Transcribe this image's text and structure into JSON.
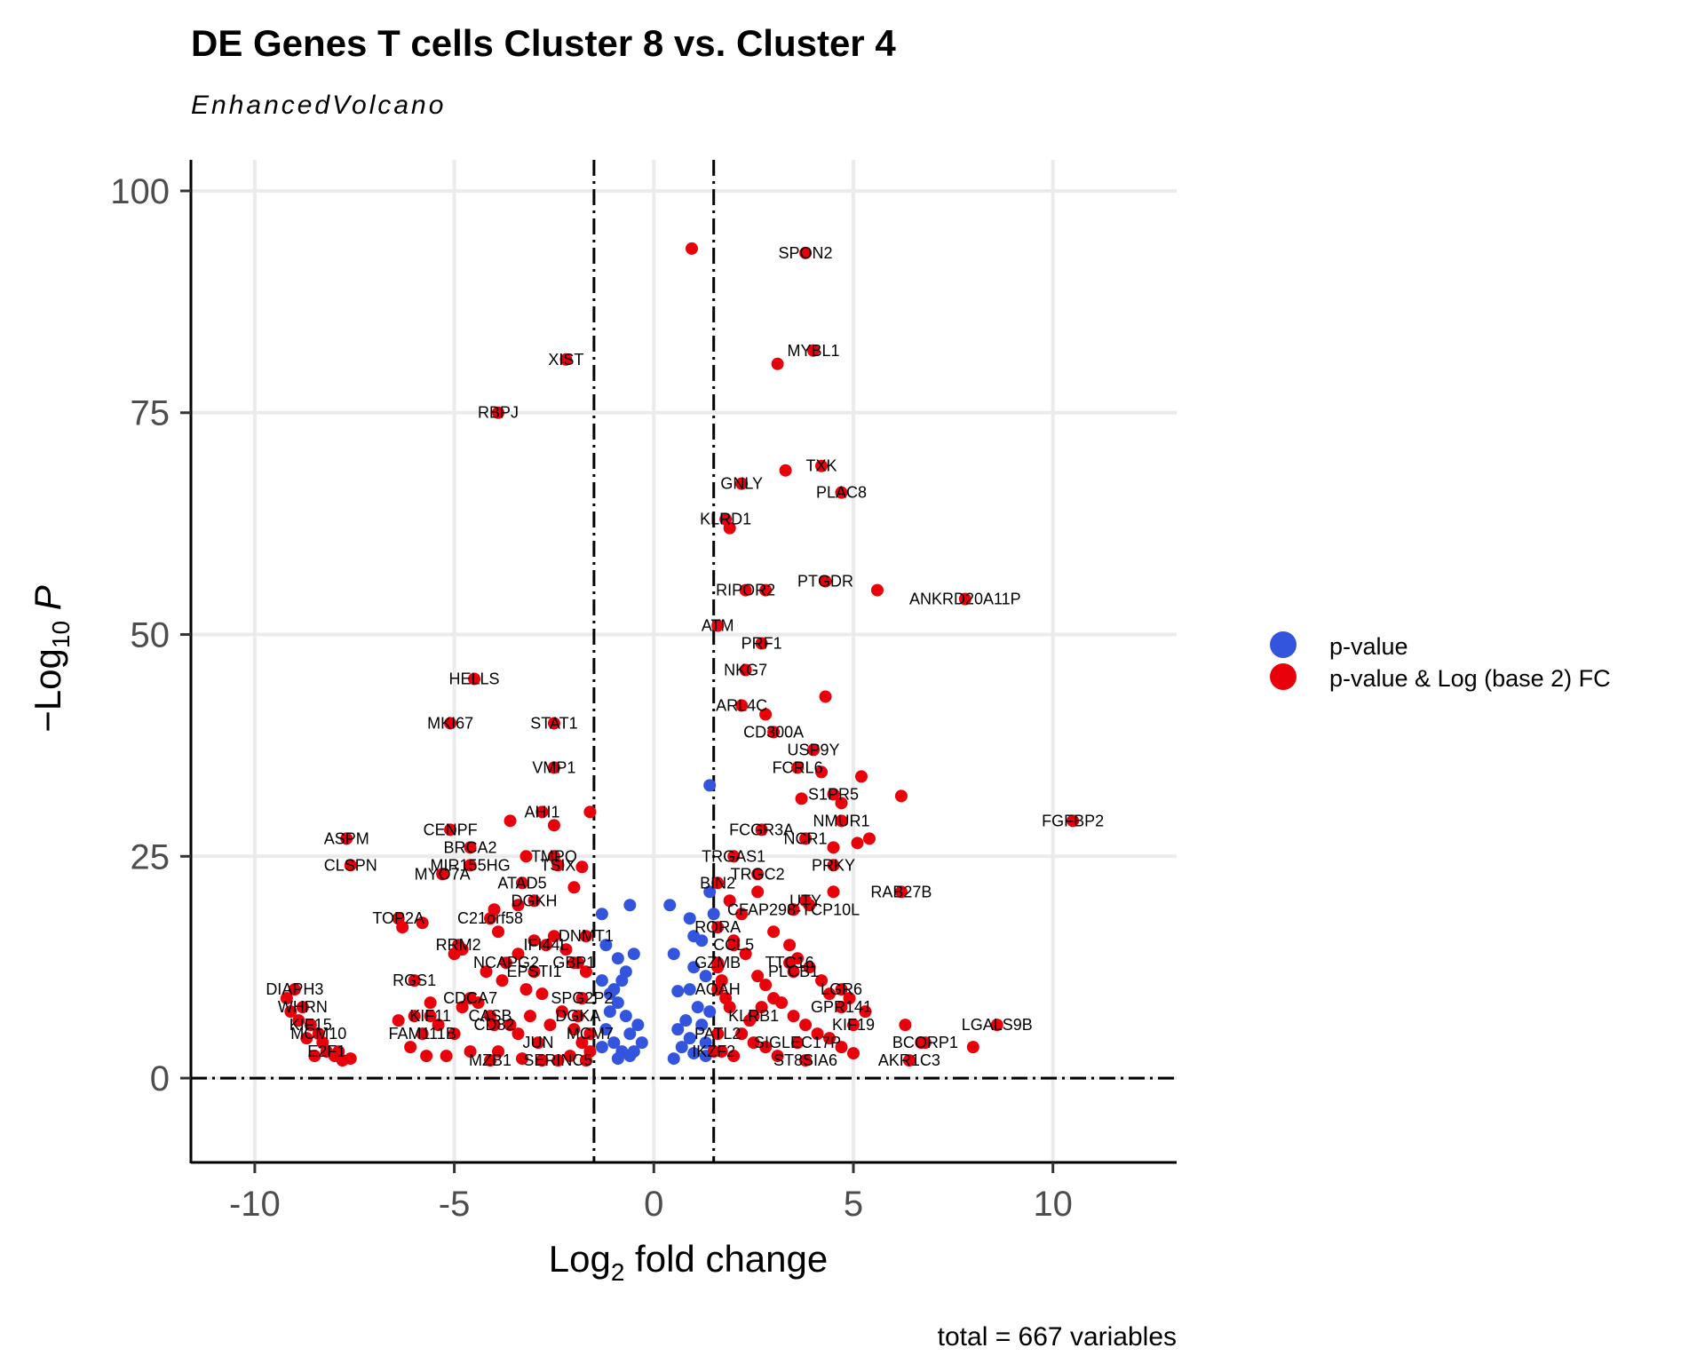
{
  "chart_data": {
    "type": "scatter",
    "title": "DE Genes T cells Cluster 8 vs. Cluster 4",
    "subtitle": "EnhancedVolcano",
    "xlabel": {
      "pre": "Log",
      "sub": "2",
      "post": " fold change"
    },
    "ylabel": {
      "pre": "−Log",
      "sub": "10",
      "post": " P"
    },
    "caption": "total = 667 variables",
    "xlim": [
      -11.6,
      13.1
    ],
    "ylim": [
      -9.5,
      103.5
    ],
    "x_ticks": [
      -10,
      -5,
      0,
      5,
      10
    ],
    "x_tick_labels": [
      "-10",
      "-5",
      "0",
      "5",
      "10"
    ],
    "y_ticks": [
      0,
      25,
      50,
      75,
      100
    ],
    "y_tick_labels": [
      "0",
      "25",
      "50",
      "75",
      "100"
    ],
    "grid": true,
    "fc_cutoff": 1.5,
    "p_cutoff_line_y": 0,
    "legend": {
      "position": "right",
      "entries": [
        {
          "label": "p-value",
          "color": "#3355dd"
        },
        {
          "label": "p-value & Log (base 2) FC",
          "color": "#e8000b"
        }
      ]
    },
    "colors": {
      "blue": "#3355dd",
      "red": "#e8000b",
      "grid": "#ebebeb"
    },
    "labeled_points": [
      {
        "gene": "SPON2",
        "x": 3.8,
        "y": 93
      },
      {
        "gene": "MYBL1",
        "x": 4.0,
        "y": 82
      },
      {
        "gene": "XIST",
        "x": -2.2,
        "y": 81
      },
      {
        "gene": "RBPJ",
        "x": -3.9,
        "y": 75
      },
      {
        "gene": "TXK",
        "x": 4.2,
        "y": 69
      },
      {
        "gene": "GNLY",
        "x": 2.2,
        "y": 67
      },
      {
        "gene": "PLAC8",
        "x": 4.7,
        "y": 66
      },
      {
        "gene": "KLRD1",
        "x": 1.8,
        "y": 63
      },
      {
        "gene": "PTGDR",
        "x": 4.3,
        "y": 56
      },
      {
        "gene": "ANKRD20A11P",
        "x": 7.8,
        "y": 54
      },
      {
        "gene": "RIPOR2",
        "x": 2.3,
        "y": 55
      },
      {
        "gene": "ATM",
        "x": 1.6,
        "y": 51
      },
      {
        "gene": "PRF1",
        "x": 2.7,
        "y": 49
      },
      {
        "gene": "HELLS",
        "x": -4.5,
        "y": 45
      },
      {
        "gene": "NKG7",
        "x": 2.3,
        "y": 46
      },
      {
        "gene": "ARL4C",
        "x": 2.2,
        "y": 42
      },
      {
        "gene": "MKI67",
        "x": -5.1,
        "y": 40
      },
      {
        "gene": "STAT1",
        "x": -2.5,
        "y": 40
      },
      {
        "gene": "CD300A",
        "x": 3.0,
        "y": 39
      },
      {
        "gene": "USP9Y",
        "x": 4.0,
        "y": 37
      },
      {
        "gene": "FCRL6",
        "x": 3.6,
        "y": 35
      },
      {
        "gene": "VMP1",
        "x": -2.5,
        "y": 35
      },
      {
        "gene": "S1PR5",
        "x": 4.5,
        "y": 32
      },
      {
        "gene": "AHI1",
        "x": -2.8,
        "y": 30
      },
      {
        "gene": "NMUR1",
        "x": 4.7,
        "y": 29
      },
      {
        "gene": "FGFBP2",
        "x": 10.5,
        "y": 29
      },
      {
        "gene": "ASPM",
        "x": -7.7,
        "y": 27
      },
      {
        "gene": "CENPF",
        "x": -5.1,
        "y": 28
      },
      {
        "gene": "FCGR3A",
        "x": 2.7,
        "y": 28
      },
      {
        "gene": "BRCA2",
        "x": -4.6,
        "y": 26
      },
      {
        "gene": "NCR1",
        "x": 3.8,
        "y": 27
      },
      {
        "gene": "TMPO",
        "x": -2.5,
        "y": 25
      },
      {
        "gene": "TRGAS1",
        "x": 2.0,
        "y": 25
      },
      {
        "gene": "MIR155HG",
        "x": -4.6,
        "y": 24
      },
      {
        "gene": "TSIX",
        "x": -2.4,
        "y": 24
      },
      {
        "gene": "CLSPN",
        "x": -7.6,
        "y": 24
      },
      {
        "gene": "PRKY",
        "x": 4.5,
        "y": 24
      },
      {
        "gene": "TRGC2",
        "x": 2.6,
        "y": 23
      },
      {
        "gene": "MYO7A",
        "x": -5.3,
        "y": 23
      },
      {
        "gene": "ATAD5",
        "x": -3.3,
        "y": 22
      },
      {
        "gene": "BIN2",
        "x": 1.6,
        "y": 22
      },
      {
        "gene": "RAB27B",
        "x": 6.2,
        "y": 21
      },
      {
        "gene": "UTY",
        "x": 3.8,
        "y": 20
      },
      {
        "gene": "DGKH",
        "x": -3.0,
        "y": 20
      },
      {
        "gene": "CFAP298-TCP10L",
        "x": 3.5,
        "y": 19
      },
      {
        "gene": "TOP2A",
        "x": -6.4,
        "y": 18
      },
      {
        "gene": "C21orf58",
        "x": -4.1,
        "y": 18
      },
      {
        "gene": "RORA",
        "x": 1.6,
        "y": 17
      },
      {
        "gene": "DNMT1",
        "x": -1.7,
        "y": 16
      },
      {
        "gene": "CCL5",
        "x": 2.0,
        "y": 15
      },
      {
        "gene": "RRM2",
        "x": -4.9,
        "y": 15
      },
      {
        "gene": "IFI44L",
        "x": -2.7,
        "y": 15
      },
      {
        "gene": "TTC16",
        "x": 3.4,
        "y": 13
      },
      {
        "gene": "GZMB",
        "x": 1.6,
        "y": 13
      },
      {
        "gene": "GBP1",
        "x": -2.0,
        "y": 13
      },
      {
        "gene": "NCAPG2",
        "x": -3.7,
        "y": 13
      },
      {
        "gene": "PLCB1",
        "x": 3.5,
        "y": 12
      },
      {
        "gene": "EPSTI1",
        "x": -3.0,
        "y": 12
      },
      {
        "gene": "RGS1",
        "x": -6.0,
        "y": 11
      },
      {
        "gene": "LGR6",
        "x": 4.7,
        "y": 10
      },
      {
        "gene": "AOAH",
        "x": 1.6,
        "y": 10
      },
      {
        "gene": "DIAPH3",
        "x": -9.0,
        "y": 10
      },
      {
        "gene": "CDCA7",
        "x": -4.6,
        "y": 9
      },
      {
        "gene": "SPG2P2",
        "x": -1.8,
        "y": 9
      },
      {
        "gene": "GPR141",
        "x": 4.7,
        "y": 8
      },
      {
        "gene": "WHRN",
        "x": -8.8,
        "y": 8
      },
      {
        "gene": "DGKA",
        "x": -1.9,
        "y": 7
      },
      {
        "gene": "KIF11",
        "x": -5.6,
        "y": 7
      },
      {
        "gene": "CASB",
        "x": -4.1,
        "y": 7
      },
      {
        "gene": "KLRB1",
        "x": 2.5,
        "y": 7
      },
      {
        "gene": "KIF15",
        "x": -8.6,
        "y": 6
      },
      {
        "gene": "KIF19",
        "x": 5.0,
        "y": 6
      },
      {
        "gene": "LGALS9B",
        "x": 8.6,
        "y": 6
      },
      {
        "gene": "CD82",
        "x": -4.0,
        "y": 6
      },
      {
        "gene": "MCM7",
        "x": -1.6,
        "y": 5
      },
      {
        "gene": "MCM10",
        "x": -8.4,
        "y": 5
      },
      {
        "gene": "FAM111B",
        "x": -5.8,
        "y": 5
      },
      {
        "gene": "PATL2",
        "x": 1.6,
        "y": 5
      },
      {
        "gene": "JUN",
        "x": -2.9,
        "y": 4
      },
      {
        "gene": "SIGLEC17P",
        "x": 3.6,
        "y": 4
      },
      {
        "gene": "BCORP1",
        "x": 6.8,
        "y": 4
      },
      {
        "gene": "E2F1",
        "x": -8.2,
        "y": 3
      },
      {
        "gene": "IKZF2",
        "x": 1.5,
        "y": 3
      },
      {
        "gene": "MZB1",
        "x": -4.1,
        "y": 2
      },
      {
        "gene": "SERINC5",
        "x": -2.4,
        "y": 2
      },
      {
        "gene": "ST8SIA6",
        "x": 3.8,
        "y": 2
      },
      {
        "gene": "AKR1C3",
        "x": 6.4,
        "y": 2
      }
    ],
    "unlabeled_points": {
      "red": [
        [
          0.95,
          93.5
        ],
        [
          3.1,
          80.5
        ],
        [
          3.3,
          68.5
        ],
        [
          1.9,
          62
        ],
        [
          5.6,
          55
        ],
        [
          2.8,
          55
        ],
        [
          4.3,
          43
        ],
        [
          2.8,
          41
        ],
        [
          5.2,
          34
        ],
        [
          4.2,
          34.5
        ],
        [
          3.7,
          31.5
        ],
        [
          4.7,
          31
        ],
        [
          6.2,
          31.8
        ],
        [
          -1.6,
          30
        ],
        [
          -3.6,
          29
        ],
        [
          -2.5,
          28.5
        ],
        [
          5.4,
          27
        ],
        [
          5.1,
          26.5
        ],
        [
          4.5,
          26
        ],
        [
          -3.2,
          25
        ],
        [
          -1.8,
          23.8
        ],
        [
          2.6,
          21
        ],
        [
          -2.0,
          21.5
        ],
        [
          -3.4,
          19.5
        ],
        [
          -4.0,
          19
        ],
        [
          -3.9,
          16.5
        ],
        [
          -3.0,
          15.5
        ],
        [
          -2.5,
          16
        ],
        [
          -2.2,
          14.5
        ],
        [
          -6.3,
          17
        ],
        [
          -5.8,
          17.5
        ],
        [
          -5.0,
          14
        ],
        [
          -4.8,
          14.5
        ],
        [
          -3.4,
          14
        ],
        [
          -1.9,
          13
        ],
        [
          -1.7,
          12
        ],
        [
          -4.2,
          12
        ],
        [
          -3.8,
          11
        ],
        [
          -3.2,
          10
        ],
        [
          -2.8,
          9.5
        ],
        [
          -5.6,
          8.5
        ],
        [
          -4.8,
          8
        ],
        [
          -4.4,
          8.5
        ],
        [
          -6.4,
          6.5
        ],
        [
          -6.0,
          7
        ],
        [
          -5.4,
          6
        ],
        [
          -5.0,
          5
        ],
        [
          -3.6,
          6
        ],
        [
          -3.4,
          5
        ],
        [
          -3.1,
          7
        ],
        [
          -2.6,
          6
        ],
        [
          -2.3,
          7.5
        ],
        [
          -2.0,
          5.5
        ],
        [
          -1.8,
          4
        ],
        [
          -1.6,
          3
        ],
        [
          -3.9,
          3
        ],
        [
          -4.6,
          3
        ],
        [
          -5.2,
          2.5
        ],
        [
          -5.7,
          2.5
        ],
        [
          -6.1,
          3.5
        ],
        [
          -2.8,
          2
        ],
        [
          -3.3,
          2.2
        ],
        [
          -2.1,
          2.5
        ],
        [
          -1.7,
          2
        ],
        [
          -7.8,
          2
        ],
        [
          -7.6,
          2.2
        ],
        [
          -7.9,
          3
        ],
        [
          -8.0,
          2.5
        ],
        [
          -8.5,
          2.5
        ],
        [
          -8.3,
          4
        ],
        [
          -8.7,
          4.5
        ],
        [
          -8.9,
          6.5
        ],
        [
          -9.1,
          7.5
        ],
        [
          -9.2,
          9
        ],
        [
          1.6,
          12.5
        ],
        [
          1.7,
          11
        ],
        [
          1.8,
          9
        ],
        [
          1.9,
          8
        ],
        [
          2.0,
          15.5
        ],
        [
          2.3,
          14
        ],
        [
          2.6,
          11.5
        ],
        [
          2.8,
          10.5
        ],
        [
          3.0,
          9
        ],
        [
          3.2,
          8.5
        ],
        [
          3.5,
          7
        ],
        [
          3.8,
          6
        ],
        [
          4.1,
          5
        ],
        [
          4.4,
          4.5
        ],
        [
          4.7,
          3.5
        ],
        [
          5.0,
          2.8
        ],
        [
          2.2,
          5
        ],
        [
          2.5,
          4
        ],
        [
          2.8,
          3.5
        ],
        [
          3.1,
          2.5
        ],
        [
          2.0,
          2.5
        ],
        [
          1.7,
          3
        ],
        [
          2.4,
          6.5
        ],
        [
          2.7,
          8
        ],
        [
          3.6,
          13.5
        ],
        [
          3.9,
          12.5
        ],
        [
          4.2,
          11
        ],
        [
          4.4,
          9.5
        ],
        [
          4.9,
          9
        ],
        [
          5.3,
          7.5
        ],
        [
          6.3,
          6
        ],
        [
          6.7,
          4
        ],
        [
          8.0,
          3.5
        ],
        [
          3.4,
          15
        ],
        [
          3.0,
          16.5
        ],
        [
          2.2,
          18.5
        ],
        [
          1.9,
          20
        ],
        [
          4.5,
          21
        ],
        [
          3.9,
          19.5
        ]
      ],
      "blue": [
        [
          1.4,
          33
        ],
        [
          1.4,
          21
        ],
        [
          1.5,
          18.5
        ],
        [
          0.9,
          18
        ],
        [
          0.4,
          19.5
        ],
        [
          -0.6,
          19.5
        ],
        [
          -1.3,
          18.5
        ],
        [
          -1.2,
          15
        ],
        [
          -0.9,
          13.5
        ],
        [
          -0.7,
          12
        ],
        [
          -0.5,
          14
        ],
        [
          -1.0,
          10
        ],
        [
          -1.3,
          11
        ],
        [
          -0.9,
          8.5
        ],
        [
          -0.7,
          7
        ],
        [
          -1.1,
          7.5
        ],
        [
          -0.4,
          6
        ],
        [
          -0.6,
          5
        ],
        [
          -1.2,
          5.5
        ],
        [
          -1.0,
          4
        ],
        [
          -0.8,
          3
        ],
        [
          -1.3,
          3.5
        ],
        [
          -0.5,
          3
        ],
        [
          -0.9,
          2.2
        ],
        [
          -0.6,
          2.5
        ],
        [
          -0.3,
          4
        ],
        [
          -1.1,
          9.5
        ],
        [
          -0.8,
          11
        ],
        [
          0.5,
          14
        ],
        [
          0.6,
          9.8
        ],
        [
          1.0,
          12.5
        ],
        [
          1.2,
          15.5
        ],
        [
          0.9,
          10
        ],
        [
          1.1,
          8
        ],
        [
          0.8,
          6.5
        ],
        [
          1.2,
          6
        ],
        [
          0.9,
          4.5
        ],
        [
          1.3,
          4
        ],
        [
          0.7,
          3.5
        ],
        [
          1.0,
          2.8
        ],
        [
          0.5,
          2.2
        ],
        [
          1.3,
          2.5
        ],
        [
          0.6,
          5.5
        ],
        [
          1.4,
          7.5
        ],
        [
          1.0,
          16
        ],
        [
          1.3,
          11.5
        ]
      ]
    }
  }
}
